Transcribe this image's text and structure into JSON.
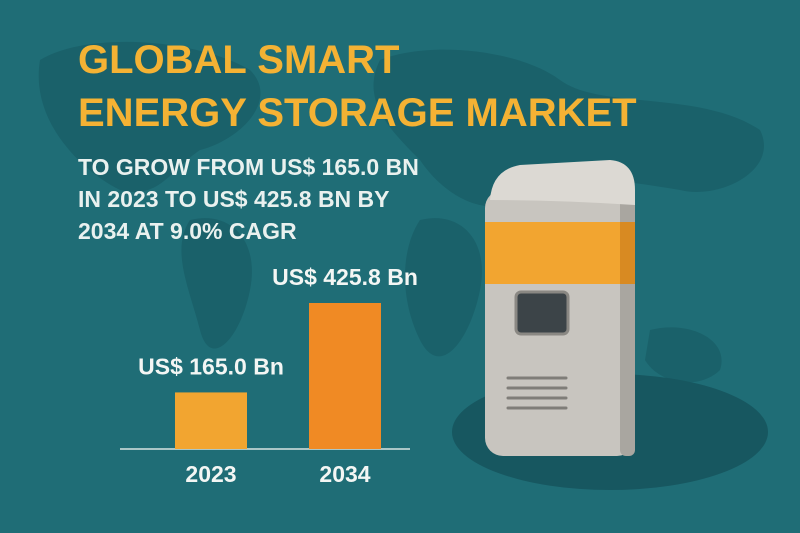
{
  "chart_data": {
    "type": "bar",
    "title": [
      "GLOBAL SMART",
      "ENERGY STORAGE MARKET"
    ],
    "subtitle": [
      "TO GROW FROM US$ 165.0 BN",
      "IN 2023 TO US$ 425.8 BN BY",
      "2034 AT 9.0% CAGR"
    ],
    "categories": [
      "2023",
      "2034"
    ],
    "values": [
      165.0,
      425.8
    ],
    "value_labels": [
      "US$ 165.0 Bn",
      "US$ 425.8 Bn"
    ],
    "colors": [
      "#f2a530",
      "#f08a24"
    ]
  }
}
